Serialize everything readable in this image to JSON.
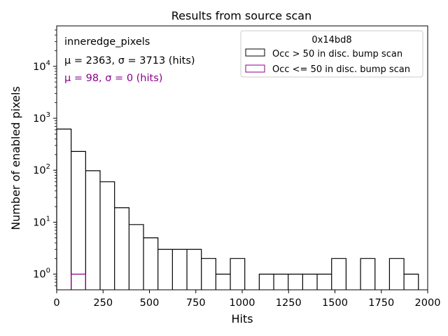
{
  "chart_data": {
    "type": "histogram",
    "title": "Results from source scan",
    "xlabel": "Hits",
    "ylabel": "Number of enabled pixels",
    "xlim": [
      0,
      2000
    ],
    "ylim": [
      0.5,
      60000
    ],
    "yscale": "log",
    "x_ticks": [
      "0",
      "250",
      "500",
      "750",
      "1000",
      "1250",
      "1500",
      "1750",
      "2000"
    ],
    "x_tick_values": [
      0,
      250,
      500,
      750,
      1000,
      1250,
      1500,
      1750,
      2000
    ],
    "y_ticks": [
      {
        "value": 1,
        "base": "10",
        "exp": "0"
      },
      {
        "value": 10,
        "base": "10",
        "exp": "1"
      },
      {
        "value": 100,
        "base": "10",
        "exp": "2"
      },
      {
        "value": 1000,
        "base": "10",
        "exp": "3"
      },
      {
        "value": 10000,
        "base": "10",
        "exp": "4"
      }
    ],
    "bin_edges": [
      0,
      78,
      156,
      234,
      312,
      390,
      468,
      546,
      624,
      702,
      780,
      858,
      936,
      1014,
      1092,
      1170,
      1248,
      1326,
      1404,
      1482,
      1560,
      1638,
      1716,
      1794,
      1872,
      1950
    ],
    "series": [
      {
        "name": "Occ > 50 in disc. bump scan",
        "color": "#000000",
        "counts": [
          620,
          230,
          98,
          60,
          19,
          9,
          5,
          3,
          3,
          3,
          2,
          1,
          2,
          0,
          1,
          1,
          1,
          1,
          1,
          2,
          0,
          2,
          0,
          2,
          1
        ]
      },
      {
        "name": "Occ <= 50 in disc. bump scan",
        "color": "#8b008b",
        "counts": [
          0,
          1,
          0,
          0,
          0,
          0,
          0,
          0,
          0,
          0,
          0,
          0,
          0,
          0,
          0,
          0,
          0,
          0,
          0,
          0,
          0,
          0,
          0,
          0,
          0
        ]
      }
    ],
    "annotations": {
      "label": "inneredge_pixels",
      "stats_black": "μ = 2363, σ = 3713 (hits)",
      "stats_purple": "μ = 98, σ = 0 (hits)"
    },
    "legend": {
      "title": "0x14bd8",
      "placement": "top-right",
      "entries": [
        "Occ > 50 in disc. bump scan",
        "Occ <= 50 in disc. bump scan"
      ]
    }
  }
}
